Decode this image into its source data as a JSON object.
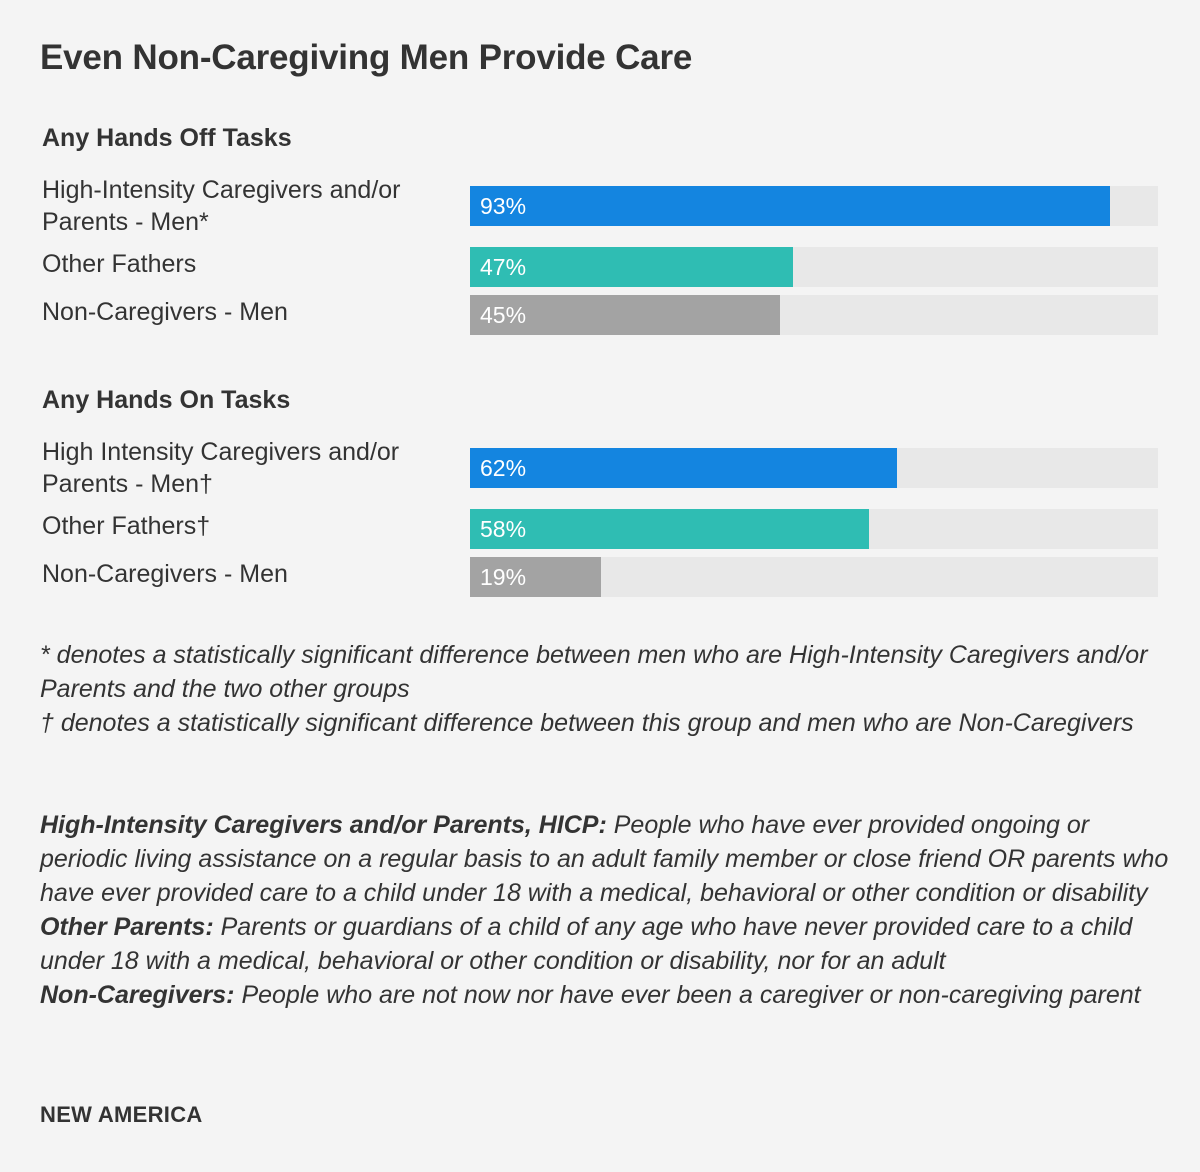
{
  "chart_data": {
    "type": "bar",
    "orientation": "horizontal",
    "title": "Even Non-Caregiving Men Provide Care",
    "xlim": [
      0,
      100
    ],
    "groups": [
      {
        "title": "Any Hands Off Tasks",
        "bars": [
          {
            "label": "High-Intensity Caregivers and/or Parents - Men*",
            "value": 93,
            "display": "93%",
            "color": "#1485e0"
          },
          {
            "label": "Other Fathers",
            "value": 47,
            "display": "47%",
            "color": "#2fbdb3"
          },
          {
            "label": "Non-Caregivers - Men",
            "value": 45,
            "display": "45%",
            "color": "#a3a3a3"
          }
        ]
      },
      {
        "title": "Any Hands On Tasks",
        "bars": [
          {
            "label": "High Intensity Caregivers and/or Parents - Men†",
            "value": 62,
            "display": "62%",
            "color": "#1485e0"
          },
          {
            "label": "Other Fathers†",
            "value": 58,
            "display": "58%",
            "color": "#2fbdb3"
          },
          {
            "label": "Non-Caregivers - Men",
            "value": 19,
            "display": "19%",
            "color": "#a3a3a3"
          }
        ]
      }
    ]
  },
  "notes": [
    "* denotes a statistically significant difference between men who are High-Intensity Caregivers and/or Parents and the two other groups",
    "† denotes a statistically significant difference between this group and men who are Non-Caregivers"
  ],
  "definitions": [
    {
      "term": "High-Intensity Caregivers and/or Parents, HICP:",
      "text": " People who have ever provided ongoing or periodic living assistance on a regular basis to an adult family member or close friend OR parents who have ever provided care to a child under 18 with a medical, behavioral or other condition or disability"
    },
    {
      "term": "Other Parents:",
      "text": " Parents or guardians of a child of any age who have never provided care to a child under 18 with a medical, behavioral or other condition or disability, nor for an adult"
    },
    {
      "term": "Non-Caregivers:",
      "text": " People who are not now nor have ever been a caregiver or non-caregiving parent"
    }
  ],
  "source": "NEW AMERICA"
}
